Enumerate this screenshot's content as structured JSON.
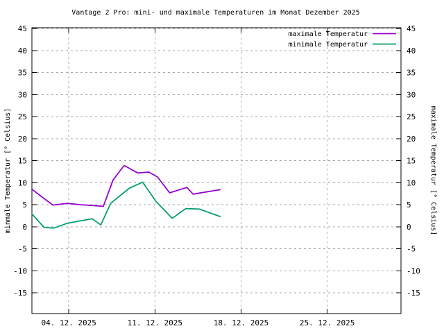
{
  "chart_data": {
    "type": "line",
    "title": "Vantage 2 Pro: mini- und maximale Temperaturen im Monat Dezember 2025",
    "ylabel_left": "minmale Temperatur [° Celsius]",
    "ylabel_right": "maximale Temperatur [° Celsius]",
    "x_unit": "day of December 2025",
    "xlim_days": [
      1,
      31
    ],
    "ylim": [
      -19.7,
      45.3
    ],
    "y_ticks": [
      -15,
      -10,
      -5,
      0,
      5,
      10,
      15,
      20,
      25,
      30,
      35,
      40,
      45
    ],
    "x_ticks": [
      {
        "day": 4,
        "label": "04. 12. 2025"
      },
      {
        "day": 11,
        "label": "11. 12. 2025"
      },
      {
        "day": 18,
        "label": "18. 12. 2025"
      },
      {
        "day": 25,
        "label": "25. 12. 2025"
      }
    ],
    "grid": true,
    "legend_position": "top-right-inside",
    "series": [
      {
        "name": "maximale Temperatur",
        "color": "#9400d3",
        "points": [
          [
            1.0,
            8.5
          ],
          [
            2.7,
            4.9
          ],
          [
            3.9,
            5.3
          ],
          [
            4.9,
            5.0
          ],
          [
            6.0,
            4.8
          ],
          [
            6.8,
            4.6
          ],
          [
            7.6,
            10.6
          ],
          [
            8.5,
            13.9
          ],
          [
            9.6,
            12.2
          ],
          [
            10.5,
            12.4
          ],
          [
            11.2,
            11.3
          ],
          [
            12.2,
            7.7
          ],
          [
            13.6,
            8.9
          ],
          [
            14.1,
            7.4
          ],
          [
            16.3,
            8.4
          ]
        ]
      },
      {
        "name": "minimale Temperatur",
        "color": "#009e73",
        "points": [
          [
            1.0,
            2.9
          ],
          [
            2.0,
            -0.2
          ],
          [
            2.8,
            -0.3
          ],
          [
            3.9,
            0.8
          ],
          [
            4.9,
            1.3
          ],
          [
            5.9,
            1.8
          ],
          [
            6.6,
            0.4
          ],
          [
            7.4,
            5.3
          ],
          [
            8.9,
            8.7
          ],
          [
            10.0,
            10.1
          ],
          [
            11.1,
            5.7
          ],
          [
            12.4,
            1.9
          ],
          [
            13.5,
            4.1
          ],
          [
            14.6,
            4.0
          ],
          [
            16.3,
            2.3
          ]
        ]
      }
    ]
  }
}
